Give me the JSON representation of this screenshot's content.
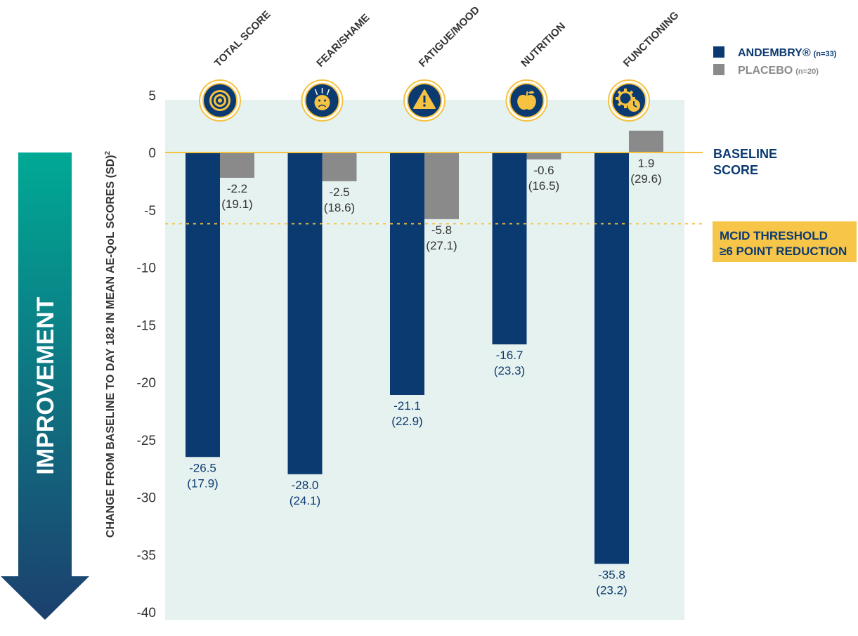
{
  "arrow_label": "IMPROVEMENT",
  "colors": {
    "andembry": "#0b3a70",
    "placebo": "#8a8a8a",
    "baseline_line": "#f5c242",
    "mcid_line": "#f5c242",
    "mcid_box": "#f7c548",
    "plot_bg": "#e6f2f0",
    "arrow_top": "#00a995",
    "arrow_bottom": "#1c3f6e",
    "icon_ring": "#f5c242",
    "icon_fill": "#0b3a70",
    "text_dark": "#333333",
    "text_navy": "#0b3a70"
  },
  "legend": {
    "andembry_label": "ANDEMBRY®",
    "andembry_n": "(n=33)",
    "placebo_label": "PLACEBO",
    "placebo_n": "(n=20)"
  },
  "baseline_label": [
    "BASELINE",
    "SCORE"
  ],
  "mcid_label": [
    "MCID THRESHOLD",
    "≥6 POINT REDUCTION"
  ],
  "chart_data": {
    "type": "bar",
    "ylabel": "CHANGE FROM BASELINE TO DAY 182 IN MEAN AE-QoL SCORES (SD)",
    "ylabel_superscript": "2",
    "ylim": [
      -40,
      5
    ],
    "yticks": [
      5,
      0,
      -5,
      -10,
      -15,
      -20,
      -25,
      -30,
      -35,
      -40
    ],
    "categories": [
      "TOTAL SCORE",
      "FEAR/SHAME",
      "FATIGUE/MOOD",
      "NUTRITION",
      "FUNCTIONING"
    ],
    "category_icons": [
      "target-icon",
      "sad-face-icon",
      "warning-icon",
      "apple-icon",
      "gear-clock-icon"
    ],
    "series": [
      {
        "name": "ANDEMBRY®",
        "values": [
          -26.5,
          -28.0,
          -21.1,
          -16.7,
          -35.8
        ],
        "labels": [
          "-26.5",
          "-28.0",
          "-21.1",
          "-16.7",
          "-35.8"
        ],
        "sd": [
          "(17.9)",
          "(24.1)",
          "(22.9)",
          "(23.3)",
          "(23.2)"
        ]
      },
      {
        "name": "PLACEBO",
        "values": [
          -2.2,
          -2.5,
          -5.8,
          -0.6,
          1.9
        ],
        "labels": [
          "-2.2",
          "-2.5",
          "-5.8",
          "-0.6",
          "1.9"
        ],
        "sd": [
          "(19.1)",
          "(18.6)",
          "(27.1)",
          "(16.5)",
          "(29.6)"
        ]
      }
    ],
    "reference_lines": [
      {
        "value": 0,
        "style": "solid"
      },
      {
        "value": -6.2,
        "style": "dashed"
      }
    ],
    "legend_position": "top-right",
    "grid": false
  }
}
